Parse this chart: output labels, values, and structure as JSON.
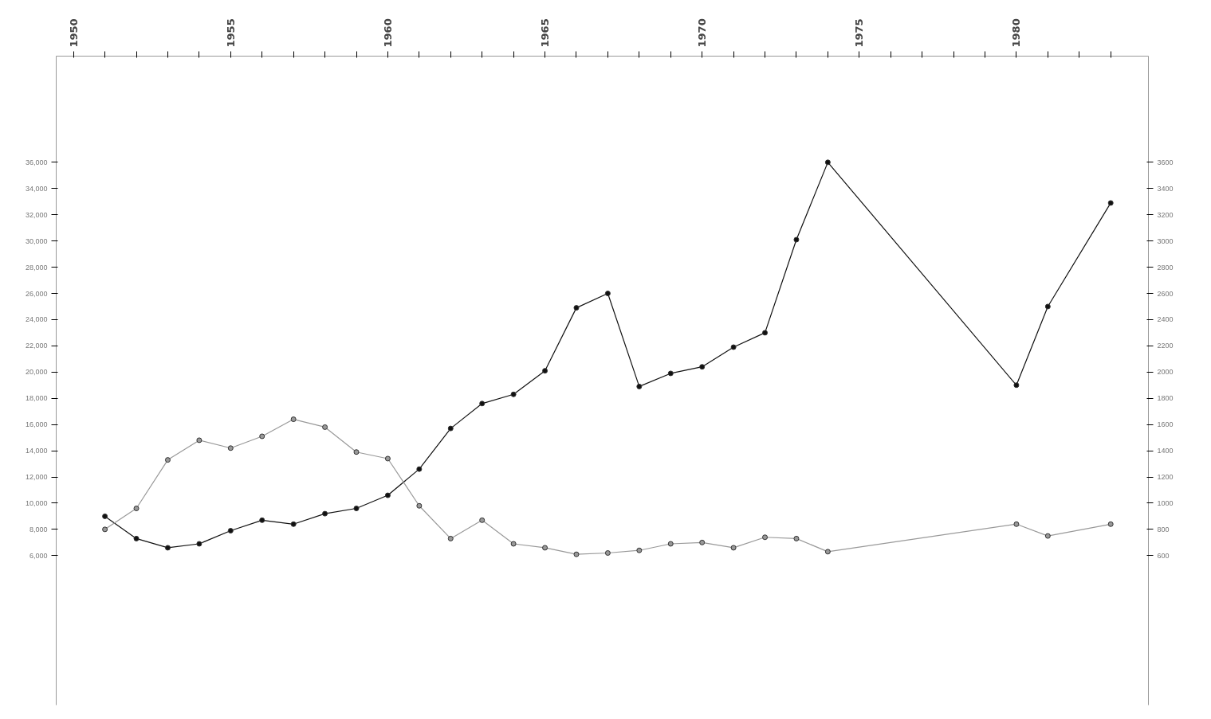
{
  "chart_data": {
    "type": "line",
    "xlim": [
      1949.45,
      1984.2
    ],
    "xticks": [
      {
        "value": 1950,
        "label": "1950"
      },
      {
        "value": 1951,
        "label": null
      },
      {
        "value": 1952,
        "label": null
      },
      {
        "value": 1953,
        "label": null
      },
      {
        "value": 1954,
        "label": null
      },
      {
        "value": 1955,
        "label": "1955"
      },
      {
        "value": 1956,
        "label": null
      },
      {
        "value": 1957,
        "label": null
      },
      {
        "value": 1958,
        "label": null
      },
      {
        "value": 1959,
        "label": null
      },
      {
        "value": 1960,
        "label": "1960"
      },
      {
        "value": 1961,
        "label": null
      },
      {
        "value": 1962,
        "label": null
      },
      {
        "value": 1963,
        "label": null
      },
      {
        "value": 1964,
        "label": null
      },
      {
        "value": 1965,
        "label": "1965"
      },
      {
        "value": 1966,
        "label": null
      },
      {
        "value": 1967,
        "label": null
      },
      {
        "value": 1968,
        "label": null
      },
      {
        "value": 1969,
        "label": null
      },
      {
        "value": 1970,
        "label": "1970"
      },
      {
        "value": 1971,
        "label": null
      },
      {
        "value": 1972,
        "label": null
      },
      {
        "value": 1973,
        "label": null
      },
      {
        "value": 1974,
        "label": null
      },
      {
        "value": 1975,
        "label": "1975"
      },
      {
        "value": 1976,
        "label": null
      },
      {
        "value": 1977,
        "label": null
      },
      {
        "value": 1978,
        "label": null
      },
      {
        "value": 1979,
        "label": null
      },
      {
        "value": 1980,
        "label": "1980"
      },
      {
        "value": 1981,
        "label": null
      },
      {
        "value": 1982,
        "label": null
      },
      {
        "value": 1983,
        "label": null
      }
    ],
    "ylim": [
      -5400,
      44100
    ],
    "yticks": [
      {
        "value": 6000,
        "label": "6,000"
      },
      {
        "value": 8000,
        "label": "8,000"
      },
      {
        "value": 10000,
        "label": "10,000"
      },
      {
        "value": 12000,
        "label": "12,000"
      },
      {
        "value": 14000,
        "label": "14,000"
      },
      {
        "value": 16000,
        "label": "16,000"
      },
      {
        "value": 18000,
        "label": "18,000"
      },
      {
        "value": 20000,
        "label": "20,000"
      },
      {
        "value": 22000,
        "label": "22,000"
      },
      {
        "value": 24000,
        "label": "24,000"
      },
      {
        "value": 26000,
        "label": "26,000"
      },
      {
        "value": 28000,
        "label": "28,000"
      },
      {
        "value": 30000,
        "label": "30,000"
      },
      {
        "value": 32000,
        "label": "32,000"
      },
      {
        "value": 34000,
        "label": "34,000"
      },
      {
        "value": 36000,
        "label": "36,000"
      }
    ],
    "y2lim": [
      -540,
      4410
    ],
    "y2ticks": [
      600,
      800,
      1000,
      1200,
      1400,
      1600,
      1800,
      2000,
      2200,
      2400,
      2600,
      2800,
      3000,
      3200,
      3400,
      3600
    ],
    "marker": "circle",
    "grid": false,
    "series": [
      {
        "color": "#111111",
        "x": [
          1951,
          1952,
          1953,
          1954,
          1955,
          1956,
          1957,
          1958,
          1959,
          1960,
          1961,
          1962,
          1963,
          1964,
          1965,
          1966,
          1967,
          1968,
          1969,
          1970,
          1971,
          1972,
          1973,
          1974,
          1980,
          1981,
          1983
        ],
        "values": [
          9000,
          7300,
          6600,
          6900,
          7900,
          8700,
          8400,
          9200,
          9600,
          10600,
          12600,
          15700,
          17600,
          18300,
          20100,
          24900,
          26000,
          18900,
          19900,
          20400,
          21900,
          23000,
          30100,
          36000,
          19000,
          25000,
          32900
        ]
      },
      {
        "color": "#999999",
        "axis": "y2",
        "x": [
          1951,
          1952,
          1953,
          1954,
          1955,
          1956,
          1957,
          1958,
          1959,
          1960,
          1961,
          1962,
          1963,
          1964,
          1965,
          1966,
          1967,
          1968,
          1969,
          1970,
          1971,
          1972,
          1973,
          1974,
          1980,
          1981,
          1983
        ],
        "values": [
          800,
          960,
          1330,
          1480,
          1420,
          1510,
          1640,
          1580,
          1390,
          1340,
          980,
          730,
          870,
          690,
          660,
          610,
          620,
          640,
          690,
          700,
          660,
          740,
          730,
          630,
          840,
          750,
          840
        ]
      }
    ]
  }
}
